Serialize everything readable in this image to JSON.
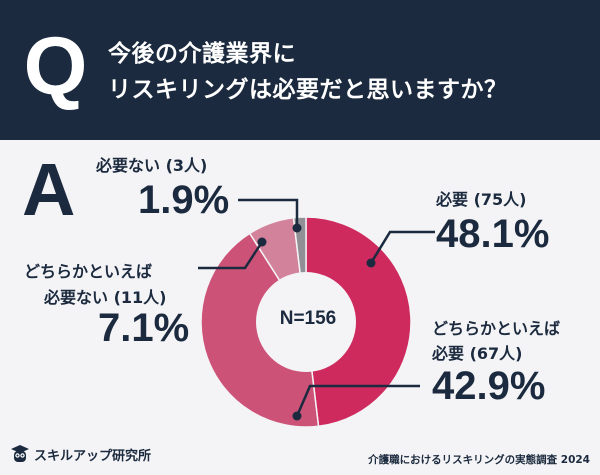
{
  "question": {
    "mark": "Q",
    "line1": "今後の介護業界に",
    "line2": "リスキリングは必要だと思いますか？"
  },
  "answer_mark": "A",
  "chart_data": {
    "type": "pie",
    "variant": "donut",
    "center_label": "N=156",
    "total": 156,
    "slices": [
      {
        "label": "必要",
        "count_label": "(75人)",
        "count": 75,
        "percent_label": "48.1%",
        "percent": 48.1,
        "color": "#cf2a5e"
      },
      {
        "label": "どちらかといえば必要",
        "count_label": "(67人)",
        "count": 67,
        "percent_label": "42.9%",
        "percent": 42.9,
        "color": "#cc5277"
      },
      {
        "label": "どちらかといえば必要ない",
        "count_label": "(11人)",
        "count": 11,
        "percent_label": "7.1%",
        "percent": 7.1,
        "color": "#d3829c"
      },
      {
        "label": "必要ない",
        "count_label": "(3人)",
        "count": 3,
        "percent_label": "1.9%",
        "percent": 1.9,
        "color": "#8f8f95"
      }
    ],
    "labels_text": {
      "s0_line1": "必要 (75人)",
      "s1_line1": "どちらかといえば",
      "s1_line2": "必要 (67人)",
      "s2_line1": "どちらかといえば",
      "s2_line2": "必要ない (11人)",
      "s3_line1": "必要ない (3人)"
    }
  },
  "footer": {
    "brand": "スキルアップ研究所",
    "source": "介護職におけるリスキリングの実態調査 2024"
  }
}
